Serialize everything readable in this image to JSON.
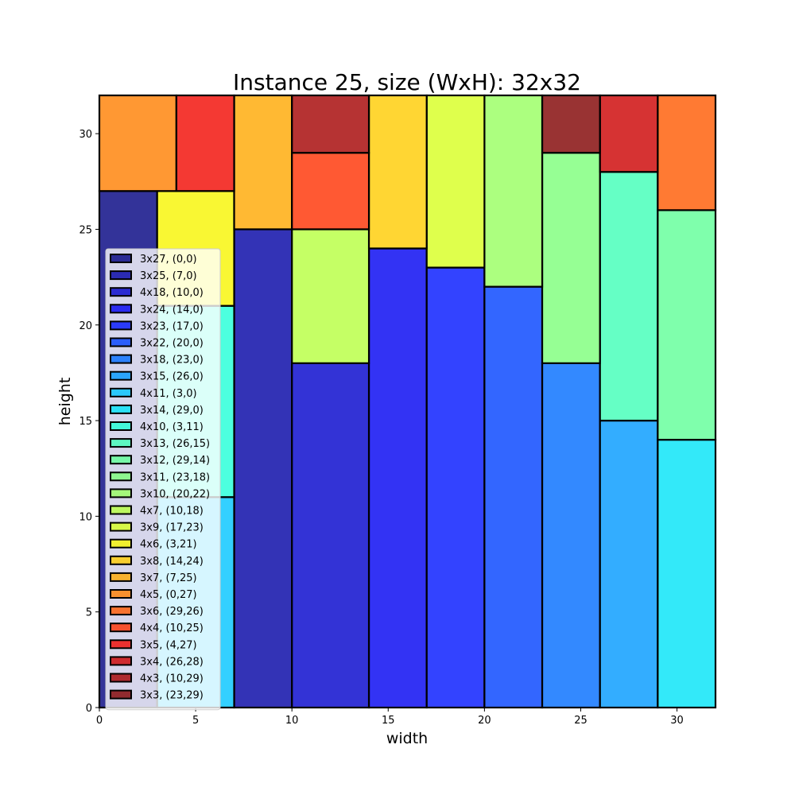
{
  "chart_data": {
    "type": "bar",
    "title": "Instance 25, size (WxH): 32x32",
    "xlabel": "width",
    "ylabel": "height",
    "xlim": [
      0,
      32
    ],
    "ylim": [
      0,
      32
    ],
    "xticks": [
      0,
      5,
      10,
      15,
      20,
      25,
      30
    ],
    "yticks": [
      0,
      5,
      10,
      15,
      20,
      25,
      30
    ],
    "grid": false,
    "legend_position": "left",
    "rectangles": [
      {
        "label": "3x27, (0,0)",
        "x": 0,
        "y": 0,
        "w": 3,
        "h": 27,
        "color": "#00007f"
      },
      {
        "label": "3x25, (7,0)",
        "x": 7,
        "y": 0,
        "w": 3,
        "h": 25,
        "color": "#0000a4"
      },
      {
        "label": "4x18, (10,0)",
        "x": 10,
        "y": 0,
        "w": 4,
        "h": 18,
        "color": "#0000cc"
      },
      {
        "label": "3x24, (14,0)",
        "x": 14,
        "y": 0,
        "w": 3,
        "h": 24,
        "color": "#0000f1"
      },
      {
        "label": "3x23, (17,0)",
        "x": 17,
        "y": 0,
        "w": 3,
        "h": 23,
        "color": "#0014ff"
      },
      {
        "label": "3x22, (20,0)",
        "x": 20,
        "y": 0,
        "w": 3,
        "h": 22,
        "color": "#0040ff"
      },
      {
        "label": "3x18, (23,0)",
        "x": 23,
        "y": 0,
        "w": 3,
        "h": 18,
        "color": "#006cff"
      },
      {
        "label": "3x15, (26,0)",
        "x": 26,
        "y": 0,
        "w": 3,
        "h": 15,
        "color": "#0098ff"
      },
      {
        "label": "4x11, (3,0)",
        "x": 3,
        "y": 0,
        "w": 4,
        "h": 11,
        "color": "#00c4ff"
      },
      {
        "label": "3x14, (29,0)",
        "x": 29,
        "y": 0,
        "w": 3,
        "h": 14,
        "color": "#00e4f8"
      },
      {
        "label": "4x10, (3,11)",
        "x": 3,
        "y": 11,
        "w": 4,
        "h": 10,
        "color": "#1fffd7"
      },
      {
        "label": "3x13, (26,15)",
        "x": 26,
        "y": 15,
        "w": 3,
        "h": 13,
        "color": "#3fffb7"
      },
      {
        "label": "3x12, (29,14)",
        "x": 29,
        "y": 14,
        "w": 3,
        "h": 12,
        "color": "#5fff97"
      },
      {
        "label": "3x11, (23,18)",
        "x": 23,
        "y": 18,
        "w": 3,
        "h": 11,
        "color": "#7cff79"
      },
      {
        "label": "3x10, (20,22)",
        "x": 20,
        "y": 22,
        "w": 3,
        "h": 10,
        "color": "#97ff5f"
      },
      {
        "label": "4x7, (10,18)",
        "x": 10,
        "y": 18,
        "w": 4,
        "h": 7,
        "color": "#b7ff3f"
      },
      {
        "label": "3x9, (17,23)",
        "x": 17,
        "y": 23,
        "w": 3,
        "h": 9,
        "color": "#d7ff1f"
      },
      {
        "label": "4x6, (3,21)",
        "x": 3,
        "y": 21,
        "w": 4,
        "h": 6,
        "color": "#f8f500"
      },
      {
        "label": "3x8, (14,24)",
        "x": 14,
        "y": 24,
        "w": 3,
        "h": 8,
        "color": "#ffcc00"
      },
      {
        "label": "3x7, (7,25)",
        "x": 7,
        "y": 25,
        "w": 3,
        "h": 7,
        "color": "#ffa700"
      },
      {
        "label": "4x5, (0,27)",
        "x": 0,
        "y": 27,
        "w": 4,
        "h": 5,
        "color": "#ff7e00"
      },
      {
        "label": "3x6, (29,26)",
        "x": 29,
        "y": 26,
        "w": 3,
        "h": 6,
        "color": "#ff5900"
      },
      {
        "label": "4x4, (10,25)",
        "x": 10,
        "y": 25,
        "w": 4,
        "h": 4,
        "color": "#ff3000"
      },
      {
        "label": "3x5, (4,27)",
        "x": 4,
        "y": 27,
        "w": 3,
        "h": 5,
        "color": "#f10800"
      },
      {
        "label": "3x4, (26,28)",
        "x": 26,
        "y": 28,
        "w": 3,
        "h": 4,
        "color": "#cc0000"
      },
      {
        "label": "4x3, (10,29)",
        "x": 10,
        "y": 29,
        "w": 4,
        "h": 3,
        "color": "#a40000"
      },
      {
        "label": "3x3, (23,29)",
        "x": 23,
        "y": 29,
        "w": 3,
        "h": 3,
        "color": "#7f0000"
      }
    ]
  }
}
